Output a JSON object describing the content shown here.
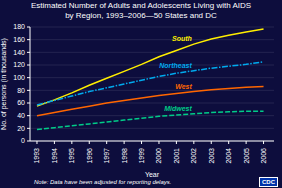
{
  "chart_data": {
    "type": "line",
    "title": "Estimated Number of Adults and Adolescents Living with AIDS",
    "subtitle": "by Region, 1993–2006—50 States and DC",
    "xlabel": "Year",
    "ylabel": "No. of persons (in thousands)",
    "x": [
      1993,
      1994,
      1995,
      1996,
      1997,
      1998,
      1999,
      2000,
      2001,
      2002,
      2003,
      2004,
      2005,
      2006
    ],
    "series": [
      {
        "name": "South",
        "color": "#ffee00",
        "line_style": "solid",
        "values": [
          55,
          65,
          76,
          88,
          99,
          110,
          121,
          133,
          143,
          153,
          161,
          167,
          172,
          177
        ]
      },
      {
        "name": "Northeast",
        "color": "#00aaee",
        "line_style": "dashdot",
        "values": [
          57,
          64,
          71,
          78,
          84,
          90,
          96,
          102,
          107,
          111,
          115,
          118,
          121,
          125
        ]
      },
      {
        "name": "West",
        "color": "#ff6600",
        "line_style": "solid",
        "values": [
          40,
          45,
          50,
          55,
          60,
          64,
          68,
          72,
          75,
          78,
          81,
          83,
          85,
          86
        ]
      },
      {
        "name": "Midwest",
        "color": "#00cc88",
        "line_style": "dashed",
        "values": [
          18,
          21,
          24,
          27,
          30,
          33,
          36,
          39,
          41,
          43,
          45,
          46,
          47,
          47
        ]
      }
    ],
    "xlim": [
      1992.6,
      2006.6
    ],
    "xticks": [
      1993,
      1994,
      1995,
      1996,
      1997,
      1998,
      1999,
      2000,
      2001,
      2002,
      2003,
      2004,
      2005,
      2006
    ],
    "ylim": [
      0,
      180
    ],
    "yticks": [
      0,
      20,
      40,
      60,
      80,
      100,
      120,
      140,
      160,
      180
    ],
    "grid": true,
    "annotations": [
      "Note: Data have been adjusted for reporting delays.",
      "CDC"
    ]
  }
}
